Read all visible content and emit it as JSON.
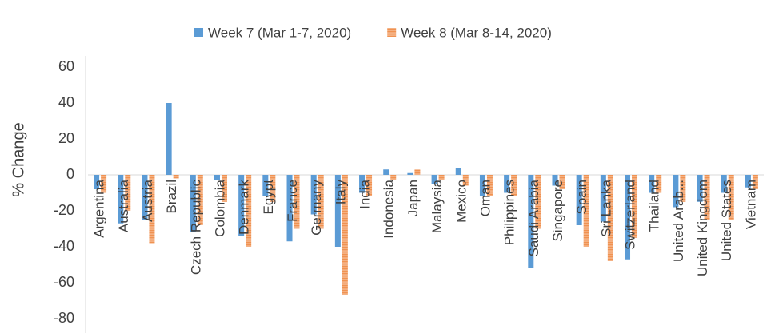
{
  "chart_data": {
    "type": "bar",
    "y_label": "% Change",
    "categories": [
      "Argentina",
      "Australia",
      "Austria",
      "Brazil",
      "Czech Republic",
      "Colombia",
      "Denmark",
      "Egypt",
      "France",
      "Germany",
      "Italy",
      "India",
      "Indonesia",
      "Japan",
      "Malaysia",
      "Mexico",
      "Oman",
      "Philippines",
      "Saudi Arabia",
      "Singapore",
      "Spain",
      "Sri Lanka",
      "Switzerland",
      "Thailand",
      "United Arab...",
      "United Kingdom",
      "United States",
      "Vietnam"
    ],
    "series": [
      {
        "name": "Week 7 (Mar 1-7, 2020)",
        "color": "#5b9bd5",
        "values": [
          -8,
          -27,
          -25,
          40,
          -32,
          -3,
          -34,
          -12,
          -37,
          -22,
          -40,
          -10,
          3,
          1,
          -5,
          4,
          -12,
          -10,
          -52,
          -6,
          -28,
          -26,
          -47,
          -10,
          -18,
          -15,
          -10,
          -7
        ]
      },
      {
        "name": "Week 8 (Mar 8-14, 2020)",
        "color": "#f4b183",
        "values": [
          -10,
          -20,
          -38,
          -2,
          -28,
          -15,
          -40,
          -15,
          -30,
          -30,
          -67,
          -12,
          -3,
          3,
          -3,
          -6,
          -12,
          -12,
          -30,
          -8,
          -40,
          -48,
          -35,
          -10,
          -15,
          -25,
          -25,
          -8
        ]
      }
    ],
    "ylim": [
      -80,
      60
    ],
    "yticks": [
      -80,
      -60,
      -40,
      -20,
      0,
      20,
      40,
      60
    ],
    "legend": "top"
  }
}
